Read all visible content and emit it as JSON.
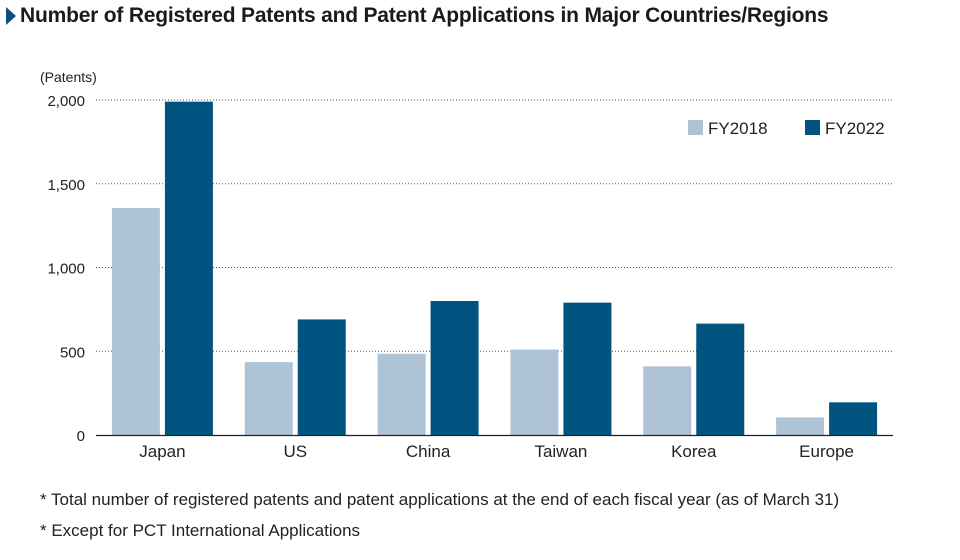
{
  "title": "Number of Registered Patents and Patent Applications in Major Countries/Regions",
  "chart_data": {
    "type": "bar",
    "unit_label": "(Patents)",
    "categories": [
      "Japan",
      "US",
      "China",
      "Taiwan",
      "Korea",
      "Europe"
    ],
    "series": [
      {
        "name": "FY2018",
        "color": "#afc3d6",
        "values": [
          1355,
          435,
          485,
          510,
          410,
          105
        ]
      },
      {
        "name": "FY2022",
        "color": "#00547f",
        "values": [
          1990,
          690,
          800,
          790,
          665,
          195
        ]
      }
    ],
    "ylim": [
      0,
      2000
    ],
    "yticks": [
      0,
      500,
      1000,
      1500,
      2000
    ],
    "ytick_labels": [
      "0",
      "500",
      "1,000",
      "1,500",
      "2,000"
    ],
    "grid": true,
    "legend": "top-right"
  },
  "notes": [
    "* Total number of registered patents and patent applications at the end of each fiscal year (as of March 31)",
    "* Except for PCT International Applications"
  ]
}
